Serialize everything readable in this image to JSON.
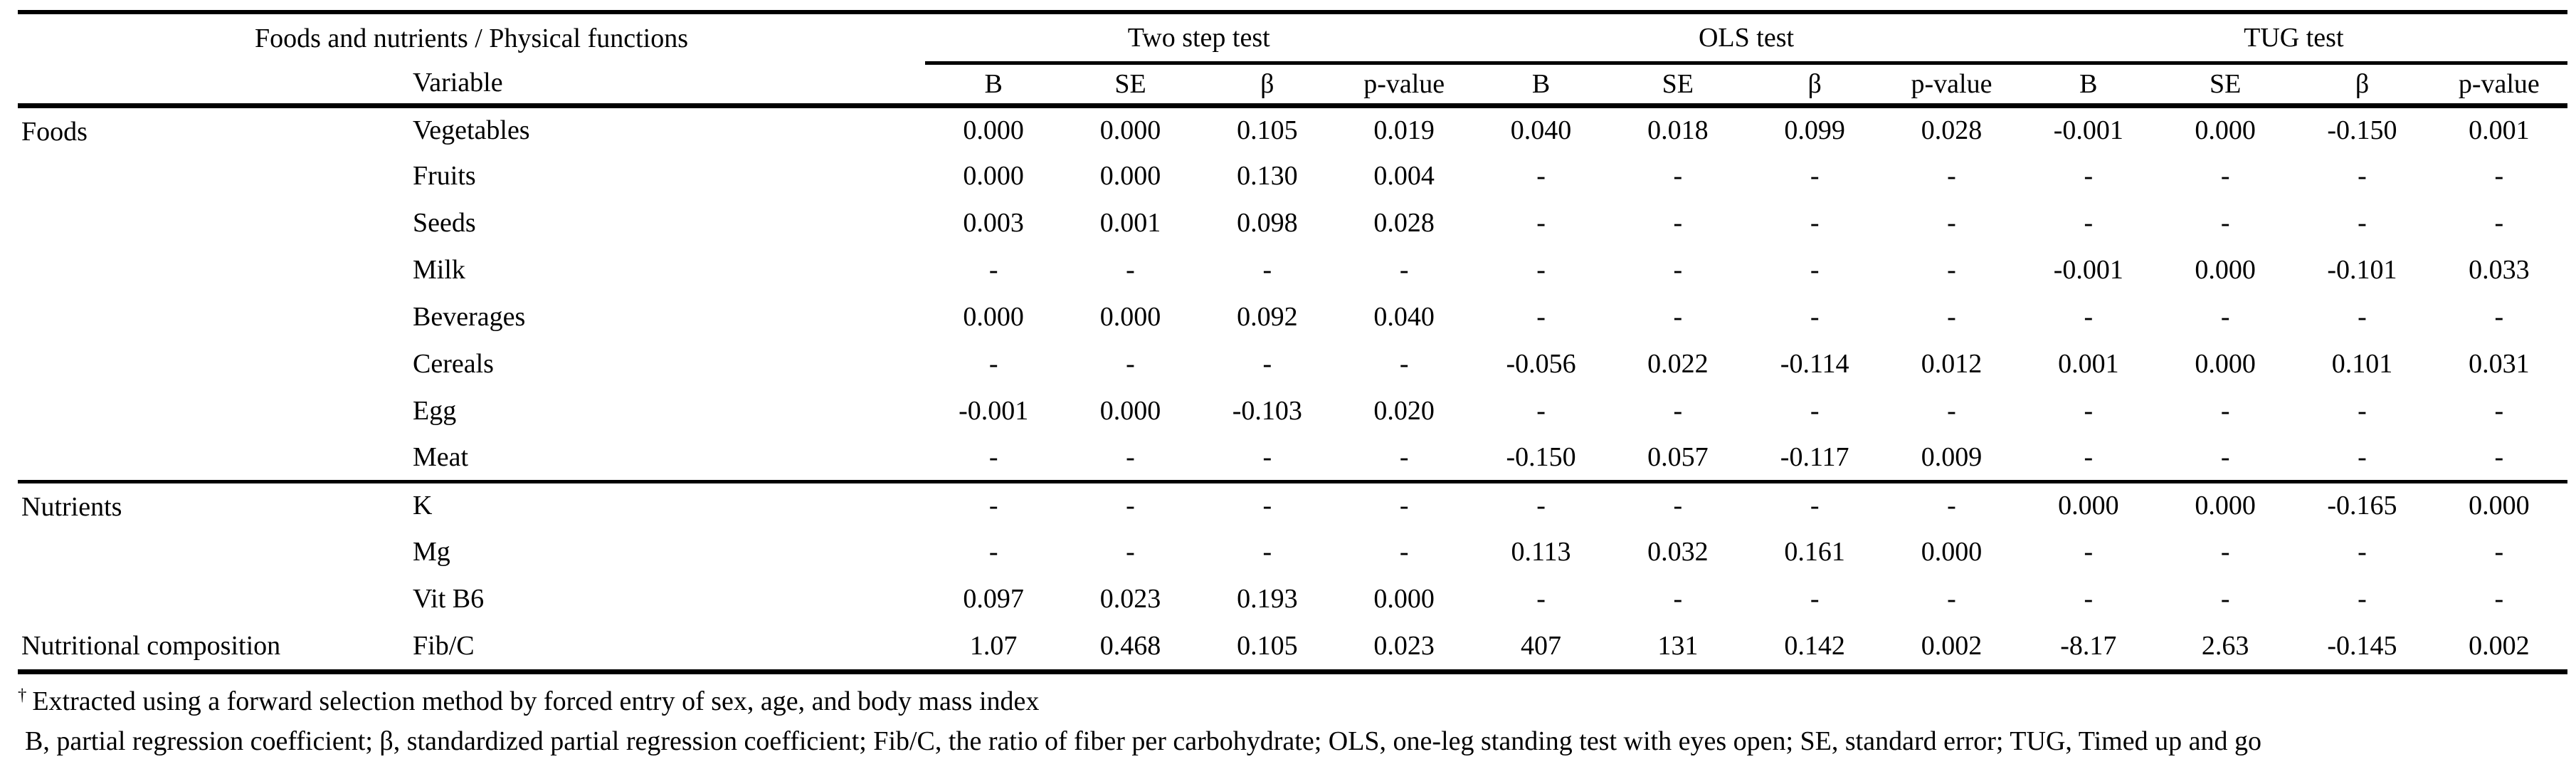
{
  "table": {
    "corner_title": "Foods and nutrients / Physical functions",
    "variable_label": "Variable",
    "tests": [
      {
        "key": "two-step",
        "label": "Two step test"
      },
      {
        "key": "ols",
        "label": "OLS test"
      },
      {
        "key": "tug",
        "label": "TUG test"
      }
    ],
    "stat_labels": [
      "B",
      "SE",
      "β",
      "p-value"
    ],
    "empty_value": "-",
    "sections": [
      {
        "label": "Foods",
        "divider_above": false,
        "rows": [
          {
            "variable": "Vegetables",
            "values": [
              "0.000",
              "0.000",
              "0.105",
              "0.019",
              "0.040",
              "0.018",
              "0.099",
              "0.028",
              "-0.001",
              "0.000",
              "-0.150",
              "0.001"
            ]
          },
          {
            "variable": "Fruits",
            "values": [
              "0.000",
              "0.000",
              "0.130",
              "0.004",
              "-",
              "-",
              "-",
              "-",
              "-",
              "-",
              "-",
              "-"
            ]
          },
          {
            "variable": "Seeds",
            "values": [
              "0.003",
              "0.001",
              "0.098",
              "0.028",
              "-",
              "-",
              "-",
              "-",
              "-",
              "-",
              "-",
              "-"
            ]
          },
          {
            "variable": "Milk",
            "values": [
              "-",
              "-",
              "-",
              "-",
              "-",
              "-",
              "-",
              "-",
              "-0.001",
              "0.000",
              "-0.101",
              "0.033"
            ]
          },
          {
            "variable": "Beverages",
            "values": [
              "0.000",
              "0.000",
              "0.092",
              "0.040",
              "-",
              "-",
              "-",
              "-",
              "-",
              "-",
              "-",
              "-"
            ]
          },
          {
            "variable": "Cereals",
            "values": [
              "-",
              "-",
              "-",
              "-",
              "-0.056",
              "0.022",
              "-0.114",
              "0.012",
              "0.001",
              "0.000",
              "0.101",
              "0.031"
            ]
          },
          {
            "variable": "Egg",
            "values": [
              "-0.001",
              "0.000",
              "-0.103",
              "0.020",
              "-",
              "-",
              "-",
              "-",
              "-",
              "-",
              "-",
              "-"
            ]
          },
          {
            "variable": "Meat",
            "values": [
              "-",
              "-",
              "-",
              "-",
              "-0.150",
              "0.057",
              "-0.117",
              "0.009",
              "-",
              "-",
              "-",
              "-"
            ]
          }
        ]
      },
      {
        "label": "Nutrients",
        "divider_above": true,
        "rows": [
          {
            "variable": "K",
            "values": [
              "-",
              "-",
              "-",
              "-",
              "-",
              "-",
              "-",
              "-",
              "0.000",
              "0.000",
              "-0.165",
              "0.000"
            ]
          },
          {
            "variable": "Mg",
            "values": [
              "-",
              "-",
              "-",
              "-",
              "0.113",
              "0.032",
              "0.161",
              "0.000",
              "-",
              "-",
              "-",
              "-"
            ]
          },
          {
            "variable": "Vit B6",
            "values": [
              "0.097",
              "0.023",
              "0.193",
              "0.000",
              "-",
              "-",
              "-",
              "-",
              "-",
              "-",
              "-",
              "-"
            ]
          }
        ]
      },
      {
        "label": "Nutritional composition",
        "divider_above": false,
        "rows": [
          {
            "variable": "Fib/C",
            "values": [
              "1.07",
              "0.468",
              "0.105",
              "0.023",
              "407",
              "131",
              "0.142",
              "0.002",
              "-8.17",
              "2.63",
              "-0.145",
              "0.002"
            ]
          }
        ]
      }
    ]
  },
  "footnotes": [
    {
      "marker": "†",
      "text": "Extracted using a forward selection method by forced entry of sex, age, and body mass index"
    },
    {
      "marker": "",
      "text": "B, partial regression coefficient; β, standardized partial regression coefficient; Fib/C, the ratio of fiber per carbohydrate; OLS, one-leg standing test with eyes open; SE, standard error; TUG, Timed up and go"
    }
  ]
}
